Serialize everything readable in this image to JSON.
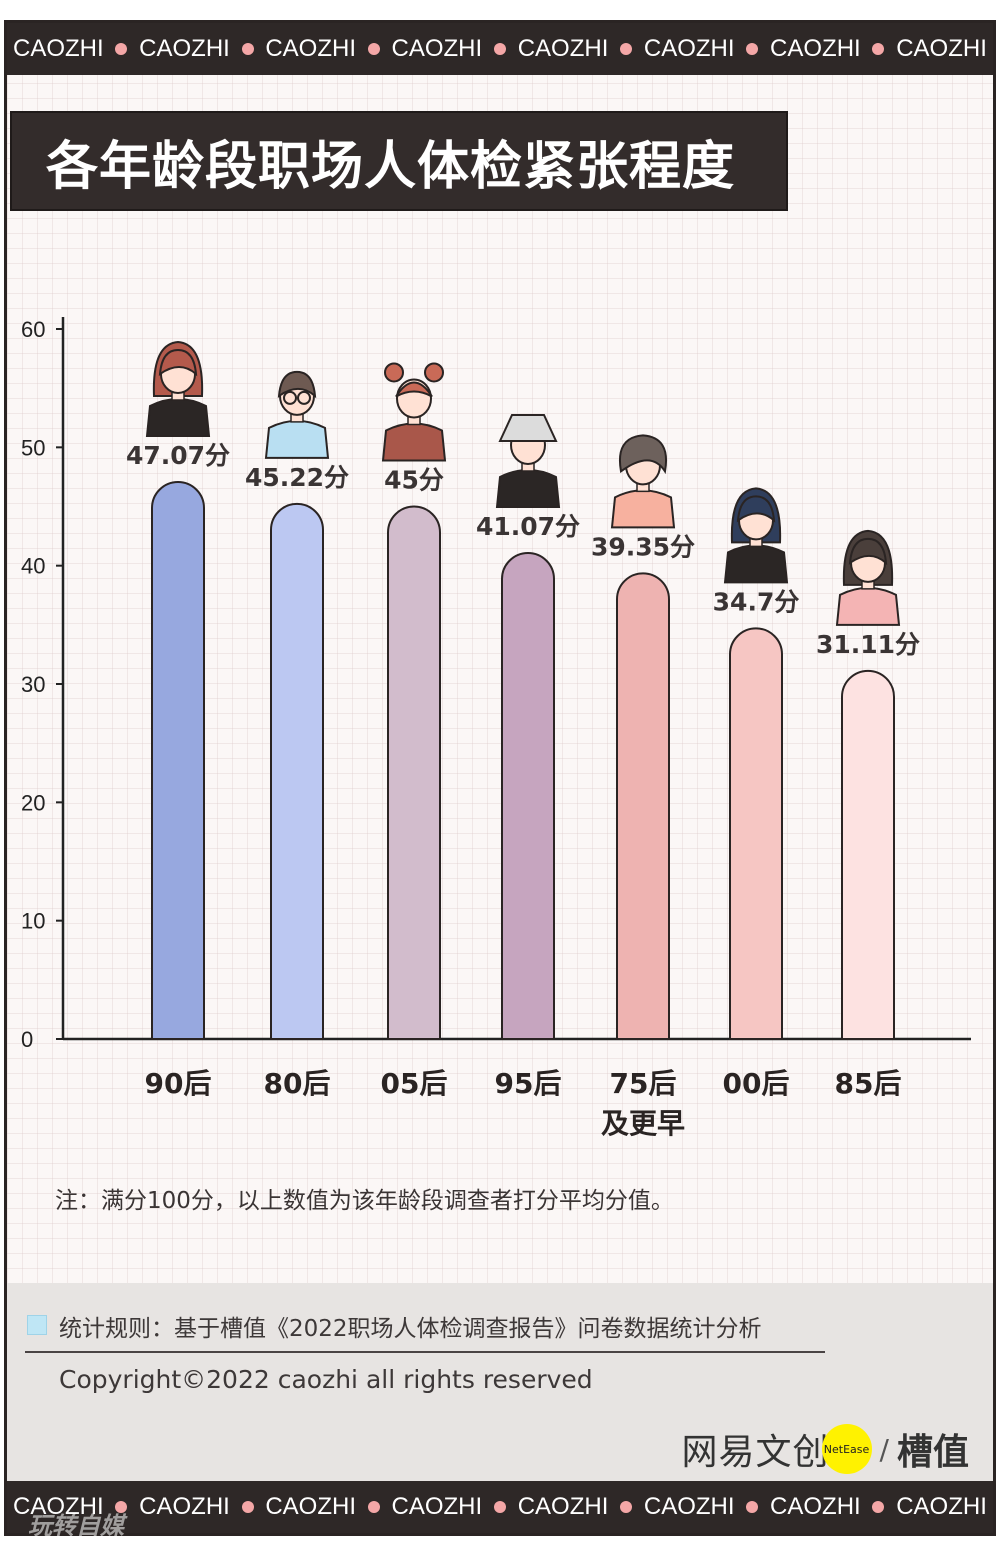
{
  "band": {
    "words": [
      "CAOZHI",
      "CAOZHI",
      "CAOZHI",
      "CAOZHI",
      "CAOZHI",
      "CAOZHI",
      "CAOZHI",
      "CAOZHI"
    ]
  },
  "title": "各年龄段职场人体检紧张程度",
  "chart_data": {
    "type": "bar",
    "title": "各年龄段职场人体检紧张程度",
    "xlabel": "",
    "ylabel": "",
    "ylim": [
      0,
      60
    ],
    "yticks": [
      0,
      10,
      20,
      30,
      40,
      50,
      60
    ],
    "grid": false,
    "categories": [
      "90后",
      "80后",
      "05后",
      "95后",
      "75后\n及更早",
      "00后",
      "85后"
    ],
    "values": [
      47.07,
      45.22,
      45,
      41.07,
      39.35,
      34.7,
      31.11
    ],
    "data_labels": [
      "47.07分",
      "45.22分",
      "45分",
      "41.07分",
      "39.35分",
      "34.7分",
      "31.11分"
    ],
    "colors": [
      "#97a8df",
      "#bcc8f2",
      "#d2bccc",
      "#c6a5bf",
      "#eeb3b1",
      "#f6c6c3",
      "#fde2e1"
    ],
    "avatars": [
      "girl-long-hair-avatar",
      "boy-glasses-avatar",
      "girl-buns-avatar",
      "bucket-hat-avatar",
      "curly-hair-woman-avatar",
      "blue-hair-girl-avatar",
      "wavy-hair-girl-avatar"
    ]
  },
  "note": "注：满分100分，以上数值为该年龄段调查者打分平均分值。",
  "footer": {
    "stat_rule": "统计规则：基于槽值《2022职场人体检调查报告》问卷数据统计分析",
    "copyright": "Copyright©2022 caozhi all rights reserved",
    "logo_main": "网易文创",
    "logo_badge": "NetEase",
    "logo_slash": "/",
    "logo_brand": "槽值"
  },
  "watermark": "玩转自媒"
}
